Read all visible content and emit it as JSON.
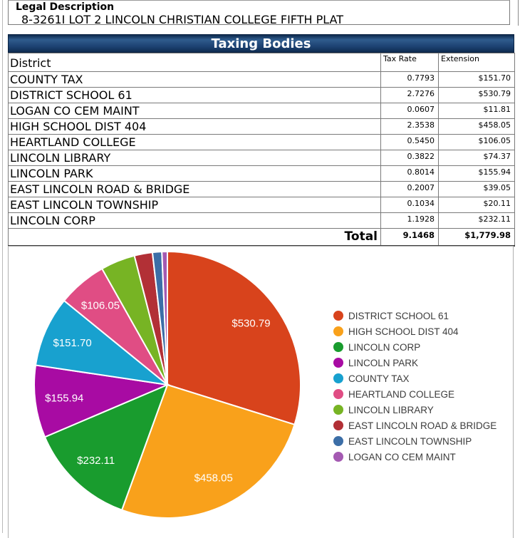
{
  "legal": {
    "title": "Legal Description",
    "description": "8-3261I LOT 2 LINCOLN CHRISTIAN COLLEGE FIFTH PLAT"
  },
  "table": {
    "title": "Taxing Bodies",
    "columns": [
      "District",
      "Tax Rate",
      "Extension"
    ],
    "rows": [
      {
        "district": "COUNTY TAX",
        "rate": "0.7793",
        "extension": "$151.70"
      },
      {
        "district": "DISTRICT SCHOOL 61",
        "rate": "2.7276",
        "extension": "$530.79"
      },
      {
        "district": "LOGAN CO CEM MAINT",
        "rate": "0.0607",
        "extension": "$11.81"
      },
      {
        "district": "HIGH SCHOOL DIST 404",
        "rate": "2.3538",
        "extension": "$458.05"
      },
      {
        "district": "HEARTLAND COLLEGE",
        "rate": "0.5450",
        "extension": "$106.05"
      },
      {
        "district": "LINCOLN LIBRARY",
        "rate": "0.3822",
        "extension": "$74.37"
      },
      {
        "district": "LINCOLN PARK",
        "rate": "0.8014",
        "extension": "$155.94"
      },
      {
        "district": "EAST LINCOLN ROAD & BRIDGE",
        "rate": "0.2007",
        "extension": "$39.05"
      },
      {
        "district": "EAST LINCOLN TOWNSHIP",
        "rate": "0.1034",
        "extension": "$20.11"
      },
      {
        "district": "LINCOLN CORP",
        "rate": "1.1928",
        "extension": "$232.11"
      }
    ],
    "total": {
      "label": "Total",
      "rate": "9.1468",
      "extension": "$1,779.98"
    }
  },
  "chart_data": {
    "type": "pie",
    "title": "",
    "start_angle_deg": 0,
    "direction": "clockwise",
    "legend_position": "right",
    "total": 1779.98,
    "slices": [
      {
        "label": "DISTRICT SCHOOL 61",
        "value": 530.79,
        "display": "$530.79",
        "color": "#d8431c"
      },
      {
        "label": "HIGH SCHOOL DIST 404",
        "value": 458.05,
        "display": "$458.05",
        "color": "#f9a11b"
      },
      {
        "label": "LINCOLN CORP",
        "value": 232.11,
        "display": "$232.11",
        "color": "#199c2e"
      },
      {
        "label": "LINCOLN PARK",
        "value": 155.94,
        "display": "$155.94",
        "color": "#a80ba3"
      },
      {
        "label": "COUNTY TAX",
        "value": 151.7,
        "display": "$151.70",
        "color": "#18a1cf"
      },
      {
        "label": "HEARTLAND COLLEGE",
        "value": 106.05,
        "display": "$106.05",
        "color": "#e04d84"
      },
      {
        "label": "LINCOLN LIBRARY",
        "value": 74.37,
        "display": null,
        "color": "#77b424"
      },
      {
        "label": "EAST LINCOLN ROAD & BRIDGE",
        "value": 39.05,
        "display": null,
        "color": "#b23036"
      },
      {
        "label": "EAST LINCOLN TOWNSHIP",
        "value": 20.11,
        "display": null,
        "color": "#3c6ea7"
      },
      {
        "label": "LOGAN CO CEM MAINT",
        "value": 11.81,
        "display": null,
        "color": "#a45ab2"
      }
    ]
  }
}
